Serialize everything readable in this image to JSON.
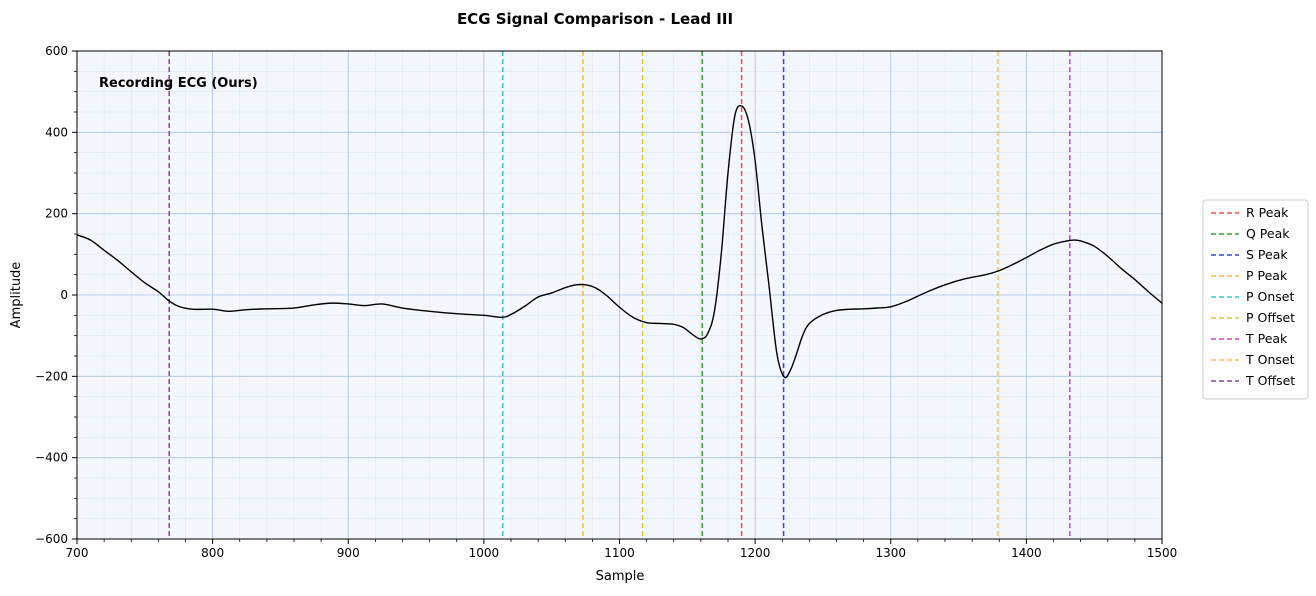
{
  "chart_data": {
    "type": "line",
    "title": "ECG Signal Comparison - Lead III",
    "xlabel": "Sample",
    "ylabel": "Amplitude",
    "xlim": [
      700,
      1500
    ],
    "ylim": [
      -600,
      600
    ],
    "x_ticks": [
      700,
      800,
      900,
      1000,
      1100,
      1200,
      1300,
      1400,
      1500
    ],
    "y_ticks": [
      -600,
      -400,
      -200,
      0,
      200,
      400,
      600
    ],
    "grid": true,
    "annotation": "Recording ECG (Ours)",
    "legend_position": "right",
    "series": [
      {
        "color": "#000000",
        "x": [
          700,
          710,
          720,
          730,
          740,
          750,
          760,
          768,
          775,
          785,
          800,
          812,
          825,
          840,
          860,
          875,
          888,
          900,
          912,
          925,
          940,
          960,
          980,
          1000,
          1013,
          1020,
          1030,
          1040,
          1050,
          1060,
          1068,
          1075,
          1082,
          1090,
          1100,
          1110,
          1120,
          1130,
          1140,
          1147,
          1155,
          1160,
          1165,
          1170,
          1175,
          1180,
          1185,
          1190,
          1195,
          1200,
          1205,
          1210,
          1215,
          1218,
          1222,
          1226,
          1230,
          1235,
          1240,
          1250,
          1260,
          1270,
          1280,
          1290,
          1300,
          1312,
          1325,
          1340,
          1355,
          1370,
          1380,
          1390,
          1400,
          1410,
          1420,
          1430,
          1435,
          1440,
          1450,
          1460,
          1470,
          1480,
          1490,
          1500
        ],
        "y": [
          148,
          135,
          110,
          85,
          57,
          30,
          8,
          -15,
          -28,
          -35,
          -35,
          -40,
          -36,
          -34,
          -32,
          -24,
          -20,
          -22,
          -26,
          -22,
          -32,
          -40,
          -46,
          -50,
          -55,
          -48,
          -28,
          -5,
          5,
          18,
          25,
          25,
          18,
          0,
          -30,
          -55,
          -68,
          -70,
          -72,
          -80,
          -100,
          -108,
          -95,
          -40,
          100,
          300,
          440,
          465,
          430,
          330,
          170,
          30,
          -120,
          -175,
          -203,
          -185,
          -150,
          -100,
          -70,
          -48,
          -38,
          -35,
          -34,
          -32,
          -29,
          -15,
          5,
          25,
          40,
          50,
          60,
          75,
          92,
          110,
          125,
          133,
          135,
          133,
          120,
          95,
          65,
          38,
          8,
          -20
        ]
      }
    ],
    "markers": [
      {
        "name": "R Peak",
        "x": 1190,
        "color": "#ff4a4a"
      },
      {
        "name": "Q Peak",
        "x": 1161,
        "color": "#33a533"
      },
      {
        "name": "S Peak",
        "x": 1221,
        "color": "#3347e6"
      },
      {
        "name": "P Peak",
        "x": 1073,
        "color": "#ffb733"
      },
      {
        "name": "P Onset",
        "x": 1014,
        "color": "#2fcfcf"
      },
      {
        "name": "P Offset",
        "x": 1117,
        "color": "#d4cd33"
      },
      {
        "name": "T Peak",
        "x": 1432,
        "color": "#da3ed6"
      },
      {
        "name": "T Onset",
        "x": 1379,
        "color": "#ffc346"
      },
      {
        "name": "T Offset",
        "x": 768,
        "color": "#8f3f9f"
      }
    ]
  }
}
